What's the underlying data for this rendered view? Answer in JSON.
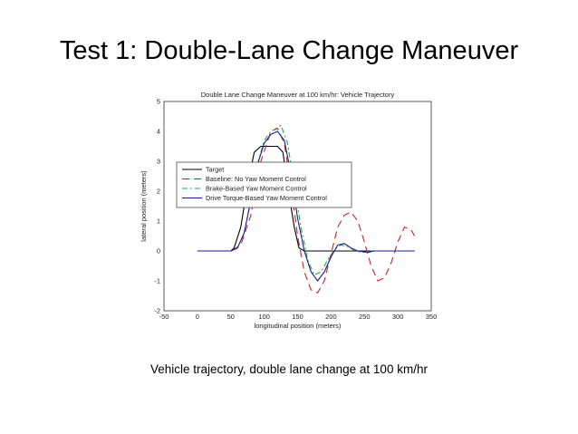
{
  "slide": {
    "title": "Test 1: Double-Lane Change Maneuver",
    "caption": "Vehicle trajectory, double lane change at 100 km/hr"
  },
  "chart_data": {
    "type": "line",
    "title": "Double Lane Change Maneuver at 100 km/hr: Vehicle Trajectory",
    "xlabel": "longitudinal position (meters)",
    "ylabel": "lateral position (meters)",
    "xlim": [
      -50,
      350
    ],
    "ylim": [
      -2,
      5
    ],
    "xticks": [
      -50,
      0,
      50,
      100,
      150,
      200,
      250,
      300,
      350
    ],
    "yticks": [
      -2,
      -1,
      0,
      1,
      2,
      3,
      4,
      5
    ],
    "grid": true,
    "legend_position": "center-left",
    "series": [
      {
        "name": "Target",
        "color": "#000000",
        "dash": "solid",
        "points": [
          [
            0,
            0
          ],
          [
            50,
            0
          ],
          [
            55,
            0.1
          ],
          [
            65,
            0.8
          ],
          [
            75,
            2.2
          ],
          [
            85,
            3.3
          ],
          [
            95,
            3.5
          ],
          [
            120,
            3.5
          ],
          [
            128,
            3.3
          ],
          [
            135,
            2.2
          ],
          [
            145,
            0.8
          ],
          [
            152,
            0.1
          ],
          [
            160,
            0
          ],
          [
            325,
            0
          ]
        ]
      },
      {
        "name": "Baseline: No Yaw Moment Control",
        "color": "#cc2222",
        "dash": "8,5",
        "points": [
          [
            0,
            0
          ],
          [
            50,
            0
          ],
          [
            65,
            0.2
          ],
          [
            80,
            1.2
          ],
          [
            95,
            3.0
          ],
          [
            110,
            4.0
          ],
          [
            120,
            4.1
          ],
          [
            130,
            3.6
          ],
          [
            140,
            2.2
          ],
          [
            150,
            0.5
          ],
          [
            160,
            -0.7
          ],
          [
            170,
            -1.3
          ],
          [
            180,
            -1.4
          ],
          [
            190,
            -1.0
          ],
          [
            200,
            -0.1
          ],
          [
            210,
            0.8
          ],
          [
            220,
            1.2
          ],
          [
            230,
            1.3
          ],
          [
            240,
            1.0
          ],
          [
            250,
            0.3
          ],
          [
            260,
            -0.5
          ],
          [
            270,
            -1.0
          ],
          [
            280,
            -0.9
          ],
          [
            290,
            -0.4
          ],
          [
            300,
            0.3
          ],
          [
            310,
            0.8
          ],
          [
            320,
            0.7
          ],
          [
            325,
            0.5
          ]
        ]
      },
      {
        "name": "Brake-Based Yaw Moment Control",
        "color": "#2aa84a",
        "dash": "6,3,2,3",
        "points": [
          [
            0,
            0
          ],
          [
            50,
            0
          ],
          [
            60,
            0.1
          ],
          [
            70,
            0.6
          ],
          [
            80,
            1.7
          ],
          [
            90,
            2.9
          ],
          [
            100,
            3.7
          ],
          [
            110,
            4.0
          ],
          [
            118,
            4.1
          ],
          [
            125,
            4.2
          ],
          [
            135,
            3.6
          ],
          [
            145,
            2.2
          ],
          [
            155,
            0.8
          ],
          [
            165,
            -0.3
          ],
          [
            175,
            -0.8
          ],
          [
            185,
            -0.7
          ],
          [
            195,
            -0.3
          ],
          [
            205,
            0.05
          ],
          [
            215,
            0.2
          ],
          [
            225,
            0.15
          ],
          [
            235,
            0.02
          ],
          [
            245,
            -0.05
          ],
          [
            260,
            0
          ],
          [
            325,
            0
          ]
        ]
      },
      {
        "name": "Drive Torque-Based Yaw Moment Control",
        "color": "#1a1a99",
        "dash": "solid",
        "points": [
          [
            0,
            0
          ],
          [
            50,
            0
          ],
          [
            60,
            0.1
          ],
          [
            70,
            0.6
          ],
          [
            80,
            1.7
          ],
          [
            90,
            2.9
          ],
          [
            100,
            3.6
          ],
          [
            110,
            3.9
          ],
          [
            120,
            4.0
          ],
          [
            130,
            3.7
          ],
          [
            140,
            2.6
          ],
          [
            150,
            1.1
          ],
          [
            160,
            0
          ],
          [
            170,
            -0.7
          ],
          [
            180,
            -1.0
          ],
          [
            190,
            -0.7
          ],
          [
            200,
            -0.2
          ],
          [
            210,
            0.2
          ],
          [
            220,
            0.25
          ],
          [
            230,
            0.1
          ],
          [
            240,
            0
          ],
          [
            255,
            -0.05
          ],
          [
            265,
            0
          ],
          [
            325,
            0
          ]
        ]
      }
    ]
  }
}
